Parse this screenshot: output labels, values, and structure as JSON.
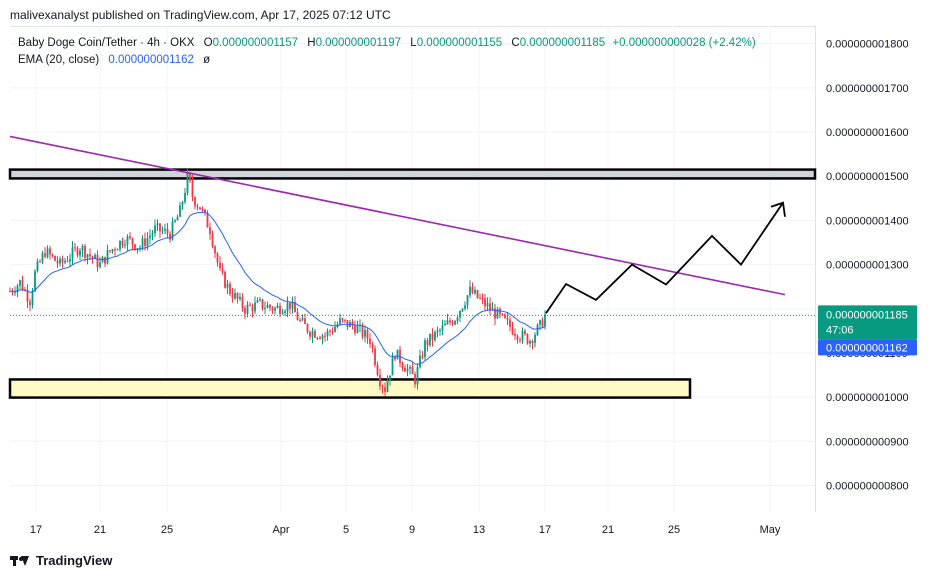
{
  "header": {
    "publisher": "malivexanalyst published on TradingView.com, Apr 17, 2025 07:12 UTC"
  },
  "legend": {
    "symbol": "Baby Doge Coin/Tether · 4h · OKX",
    "o_label": "O",
    "o_value": "0.000000001157",
    "h_label": "H",
    "h_value": "0.000000001197",
    "l_label": "L",
    "l_value": "0.000000001155",
    "c_label": "C",
    "c_value": "0.000000001185",
    "change": "+0.000000000028 (+2.42%)",
    "ema_label": "EMA (20, close)",
    "ema_value": "0.000000001162",
    "ema_suffix": "ø"
  },
  "footer": {
    "brand": "TradingView"
  },
  "chart_data": {
    "type": "candlestick",
    "x_tick_labels": [
      "17",
      "21",
      "25",
      "Apr",
      "5",
      "9",
      "13",
      "17",
      "21",
      "25",
      "May"
    ],
    "y_tick_labels": [
      "0.000000001800",
      "0.000000001700",
      "0.000000001600",
      "0.000000001500",
      "0.000000001400",
      "0.000000001300",
      "0.000000001200",
      "0.000000001100",
      "0.000000001000",
      "0.000000000900",
      "0.000000000800"
    ],
    "ylim": [
      7.4e-10,
      1.84e-09
    ],
    "last_price_label": "0.000000001185",
    "countdown": "47:06",
    "ema_price_label": "0.000000001162",
    "colors": {
      "up": "#089981",
      "down": "#f23645",
      "ema": "#2962ff",
      "trendline": "#9c27b0",
      "projection": "#000000",
      "resistance_zone": "#d1d4dc",
      "support_zone": "#fff9c4"
    },
    "resistance_zone": [
      1.495e-09,
      1.515e-09
    ],
    "support_zone": [
      9.99e-10,
      1.04e-09
    ],
    "trendline": {
      "x": [
        0,
        775
      ],
      "y": [
        1.59e-09,
        1.232e-09
      ]
    },
    "projection": {
      "x": [
        536,
        556,
        586,
        622,
        656,
        702,
        731,
        773,
        775
      ],
      "y": [
        1.19e-09,
        1.256e-09,
        1.22e-09,
        1.3e-09,
        1.255e-09,
        1.365e-09,
        1.3e-09,
        1.44e-09,
        1.41e-09
      ]
    },
    "price_path": {
      "x": [
        0,
        10,
        20,
        25,
        35,
        50,
        70,
        90,
        100,
        115,
        130,
        145,
        160,
        170,
        178,
        183,
        190,
        200,
        210,
        220,
        235,
        250,
        265,
        280,
        290,
        300,
        315,
        330,
        345,
        360,
        370,
        375,
        385,
        395,
        405,
        415,
        430,
        445,
        460,
        470,
        480,
        490,
        500,
        510,
        520,
        530,
        535
      ],
      "y": [
        1.24e-09,
        1.26e-09,
        1.22e-09,
        1.28e-09,
        1.33e-09,
        1.3e-09,
        1.34e-09,
        1.3e-09,
        1.33e-09,
        1.36e-09,
        1.34e-09,
        1.38e-09,
        1.37e-09,
        1.42e-09,
        1.5e-09,
        1.45e-09,
        1.43e-09,
        1.38e-09,
        1.28e-09,
        1.24e-09,
        1.2e-09,
        1.21e-09,
        1.2e-09,
        1.21e-09,
        1.17e-09,
        1.15e-09,
        1.14e-09,
        1.17e-09,
        1.16e-09,
        1.13e-09,
        1.04e-09,
        1.02e-09,
        1.1e-09,
        1.07e-09,
        1.04e-09,
        1.12e-09,
        1.15e-09,
        1.18e-09,
        1.24e-09,
        1.22e-09,
        1.2e-09,
        1.18e-09,
        1.16e-09,
        1.14e-09,
        1.13e-09,
        1.16e-09,
        1.185e-09
      ]
    }
  }
}
